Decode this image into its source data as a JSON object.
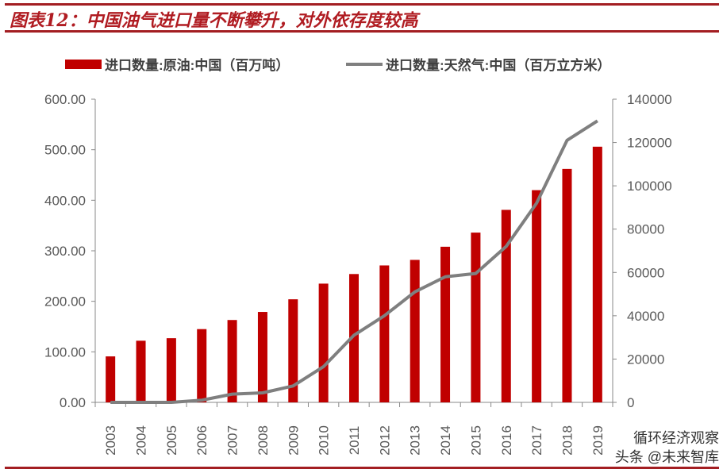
{
  "title": "图表12：中国油气进口量不断攀升，对外依存度较高",
  "watermark": [
    "循环经济观察",
    "头条 @未来智库"
  ],
  "colors": {
    "bar": "#c00000",
    "line": "#7f7f7f",
    "rule": "#a31e22"
  },
  "chart_data": {
    "type": "bar+line",
    "categories": [
      "2003",
      "2004",
      "2005",
      "2006",
      "2007",
      "2008",
      "2009",
      "2010",
      "2011",
      "2012",
      "2013",
      "2014",
      "2015",
      "2016",
      "2017",
      "2018",
      "2019"
    ],
    "series": [
      {
        "name": "进口数量:原油:中国（百万吨）",
        "type": "bar",
        "axis": "left",
        "values": [
          91,
          122,
          127,
          145,
          163,
          179,
          204,
          235,
          254,
          271,
          282,
          308,
          336,
          381,
          420,
          462,
          506
        ]
      },
      {
        "name": "进口数量:天然气:中国（百万立方米）",
        "type": "line",
        "axis": "right",
        "values": [
          0,
          0,
          0,
          1000,
          3800,
          4400,
          7600,
          16500,
          31000,
          40000,
          51000,
          58000,
          59500,
          72000,
          92000,
          121000,
          130000
        ]
      }
    ],
    "left_axis": {
      "ylim": [
        0,
        600
      ],
      "ticks": [
        "0.00",
        "100.00",
        "200.00",
        "300.00",
        "400.00",
        "500.00",
        "600.00"
      ]
    },
    "right_axis": {
      "ylim": [
        0,
        140000
      ],
      "ticks": [
        "0",
        "20000",
        "40000",
        "60000",
        "80000",
        "100000",
        "120000",
        "140000"
      ]
    },
    "legend_position": "top",
    "grid": false
  }
}
